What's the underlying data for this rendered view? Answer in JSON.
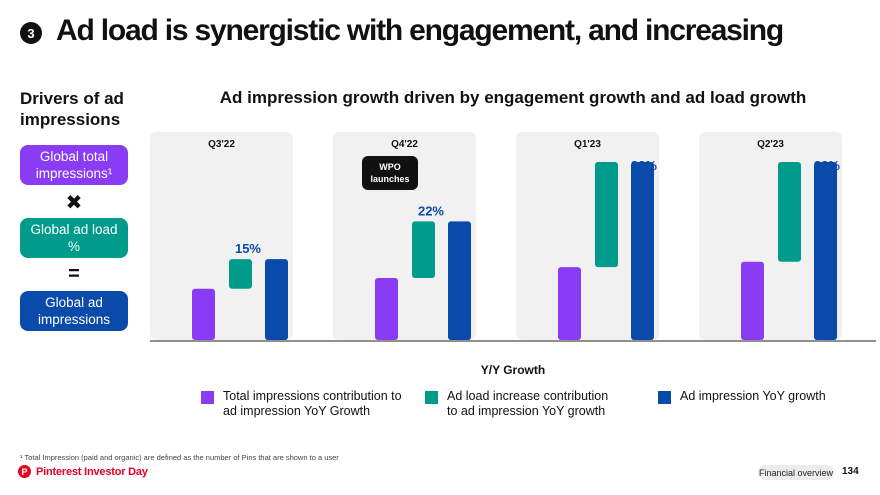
{
  "header": {
    "section_number": "3",
    "title": "Ad load is synergistic with engagement, and increasing"
  },
  "drivers": {
    "heading": "Drivers of ad impressions",
    "box1": "Global total impressions¹",
    "operator1": "✖",
    "box2": "Global ad load %",
    "operator2": "=",
    "box3": "Global ad impressions"
  },
  "chart_data": {
    "type": "bar",
    "title": "Ad impression growth driven by engagement growth and ad load growth",
    "xlabel": "Y/Y Growth",
    "ylabel": "",
    "ylim": [
      0,
      38
    ],
    "categories": [
      "Q3'22",
      "Q4'22",
      "Q1'23",
      "Q2'23"
    ],
    "series": [
      {
        "name": "Total impressions contribution to ad impression YoY Growth",
        "values": [
          9.5,
          11.5,
          13.5,
          14.5
        ],
        "color": "#8a3bf4"
      },
      {
        "name": "Ad load increase contribution to ad impression YoY growth",
        "values": [
          5.5,
          10.5,
          19.5,
          18.5
        ],
        "color": "#009b8b"
      },
      {
        "name": "Ad impression YoY growth",
        "values": [
          15,
          22,
          33,
          33
        ],
        "color": "#0a4aaa"
      }
    ],
    "data_labels": [
      "15%",
      "22%",
      "33%",
      "33%"
    ],
    "annotation": {
      "category": "Q4'22",
      "text_line1": "WPO",
      "text_line2": "launches"
    },
    "legend_position": "bottom",
    "grid": false
  },
  "legend": {
    "item1_line1": "Total impressions contribution to",
    "item1_line2": "ad impression YoY Growth",
    "item2_line1": "Ad load increase contribution",
    "item2_line2": "to ad impression YoY growth",
    "item3": "Ad impression YoY growth"
  },
  "footnote": "¹ Total Impression (paid and organic) are defined as the number of Pins that are shown to a user",
  "footer": {
    "brand": "Pinterest Investor Day",
    "brand_icon": "pinterest-logo-icon",
    "section": "Financial overview",
    "page": "134"
  },
  "colors": {
    "purple": "#8a3bf4",
    "teal": "#009b8b",
    "blue": "#0a4aaa",
    "label_blue": "#0a4aaa",
    "panel": "#f1f1f1",
    "brand_red": "#e60023"
  }
}
